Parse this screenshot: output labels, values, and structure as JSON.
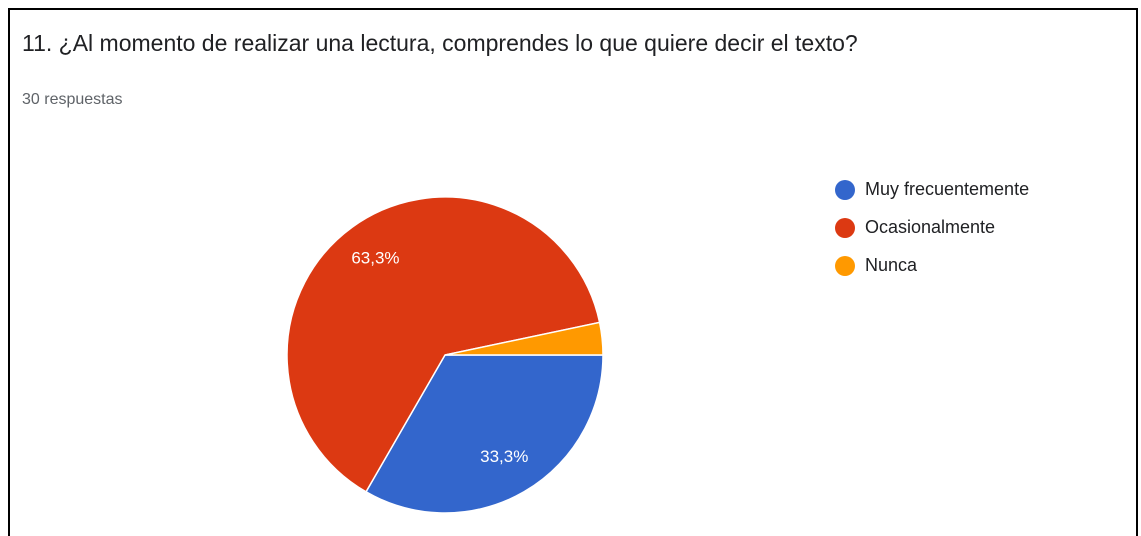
{
  "chart_data": {
    "type": "pie",
    "title": "11. ¿Al momento de realizar una lectura, comprendes lo que quiere decir el texto?",
    "subtitle": "30 respuestas",
    "categories": [
      "Muy frecuentemente",
      "Ocasionalmente",
      "Nunca"
    ],
    "values": [
      33.3,
      63.3,
      3.3
    ],
    "value_labels": [
      "33,3%",
      "63,3%",
      null
    ],
    "colors": [
      "#3366cc",
      "#dc3912",
      "#ff9900"
    ],
    "legend": "right"
  }
}
